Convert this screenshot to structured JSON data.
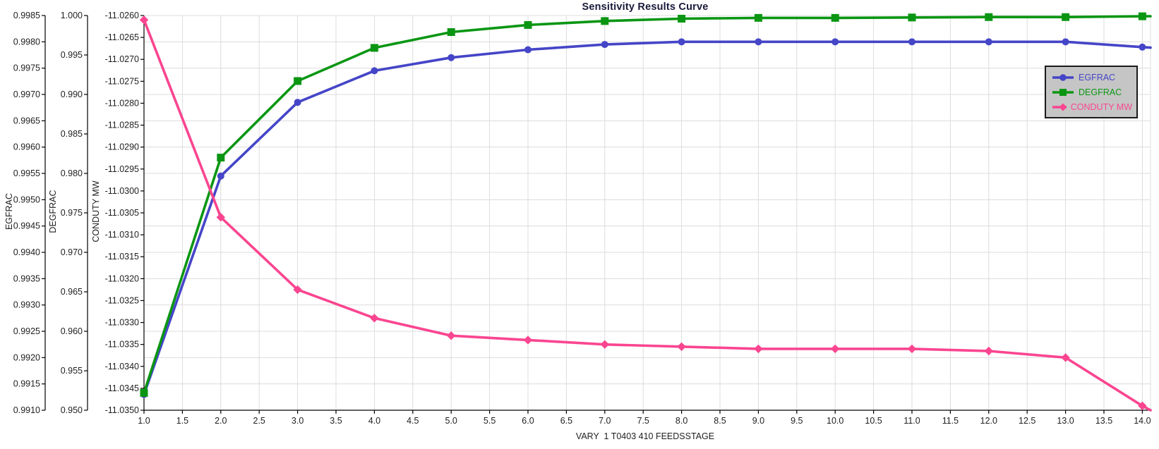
{
  "chart_data": {
    "type": "line",
    "title": "Sensitivity Results Curve",
    "title_color": "#1A1A3C",
    "xlabel": "VARY  1 T0403 410 FEEDSSTAGE",
    "grid": true,
    "grid_color": "#DCDCDC",
    "axis_color": "#000000",
    "tick_label_color": "#1f1f1f",
    "x": [
      1,
      2,
      3,
      4,
      5,
      6,
      7,
      8,
      9,
      10,
      11,
      12,
      13,
      14
    ],
    "x_axis": {
      "min": 1.0,
      "max": 14.0,
      "tick_step": 0.5,
      "decimals": 1
    },
    "y_axes": [
      {
        "name": "EGFRAC",
        "min": 0.991,
        "max": 0.9985,
        "tick_step": 0.0005,
        "decimals": 4
      },
      {
        "name": "DEGFRAC",
        "min": 0.95,
        "max": 1.0,
        "tick_step": 0.005,
        "decimals": 3
      },
      {
        "name": "CONDUTY MW",
        "min": -11.035,
        "max": -11.026,
        "tick_step": 0.0005,
        "decimals": 4
      }
    ],
    "series": [
      {
        "name": "EGFRAC",
        "color": "#4545C8",
        "marker": "circle",
        "y_axis": 0,
        "values": [
          0.9913,
          0.99545,
          0.99685,
          0.99745,
          0.9977,
          0.99785,
          0.99795,
          0.998,
          0.998,
          0.998,
          0.998,
          0.998,
          0.998,
          0.9979
        ]
      },
      {
        "name": "DEGFRAC",
        "color": "#0A9613",
        "marker": "square",
        "y_axis": 1,
        "values": [
          0.9522,
          0.982,
          0.9917,
          0.9959,
          0.9979,
          0.9988,
          0.9993,
          0.9996,
          0.9997,
          0.9997,
          0.99975,
          0.9998,
          0.9998,
          0.9999
        ]
      },
      {
        "name": "CONDUTY MW",
        "color": "#FA4590",
        "marker": "diamond",
        "y_axis": 2,
        "values": [
          -11.0261,
          -11.0306,
          -11.03225,
          -11.0329,
          -11.0333,
          -11.0334,
          -11.0335,
          -11.03355,
          -11.0336,
          -11.0336,
          -11.0336,
          -11.03365,
          -11.0338,
          -11.0349
        ]
      }
    ],
    "legend": {
      "position": "top-right",
      "background": "#C5C5C5",
      "border_color": "#1A1A1A",
      "entries": [
        "EGFRAC",
        "DEGFRAC",
        "CONDUTY MW"
      ]
    }
  }
}
